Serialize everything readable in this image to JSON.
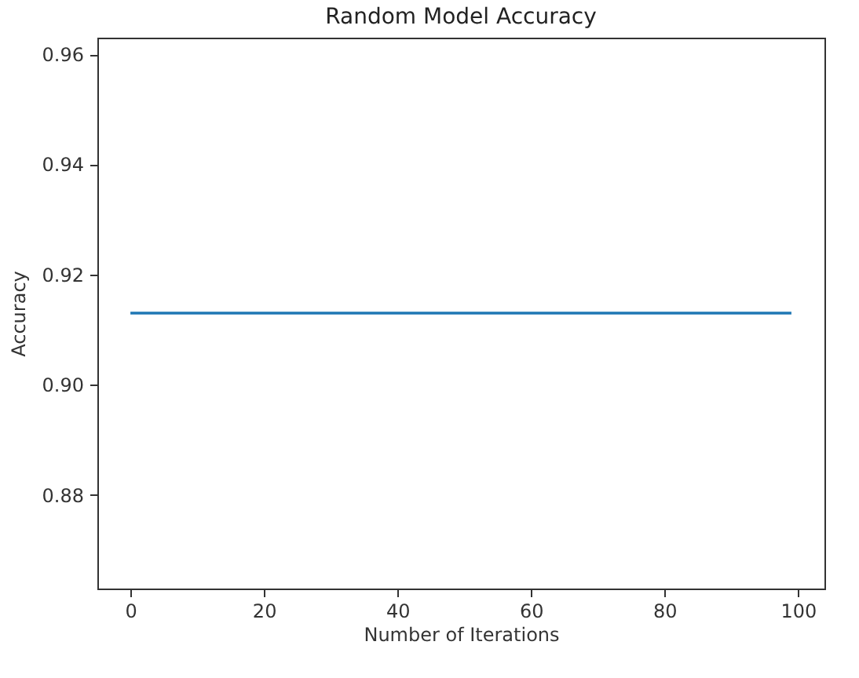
{
  "chart_data": {
    "type": "line",
    "title": "Random Model Accuracy",
    "xlabel": "Number of Iterations",
    "ylabel": "Accuracy",
    "x": [
      0,
      99
    ],
    "series": [
      {
        "color": "#1f77b4",
        "values": [
          0.913,
          0.913
        ]
      }
    ],
    "xlim": [
      -4.95,
      103.95
    ],
    "xticks": [
      0,
      20,
      40,
      60,
      80,
      100
    ],
    "ylim": [
      0.863,
      0.963
    ],
    "yticks": [
      {
        "value": 0.88,
        "label": "0.88"
      },
      {
        "value": 0.9,
        "label": "0.90"
      },
      {
        "value": 0.92,
        "label": "0.92"
      },
      {
        "value": 0.94,
        "label": "0.94"
      },
      {
        "value": 0.96,
        "label": "0.96"
      }
    ],
    "grid": false,
    "marker": "none",
    "line_style": "solid"
  }
}
